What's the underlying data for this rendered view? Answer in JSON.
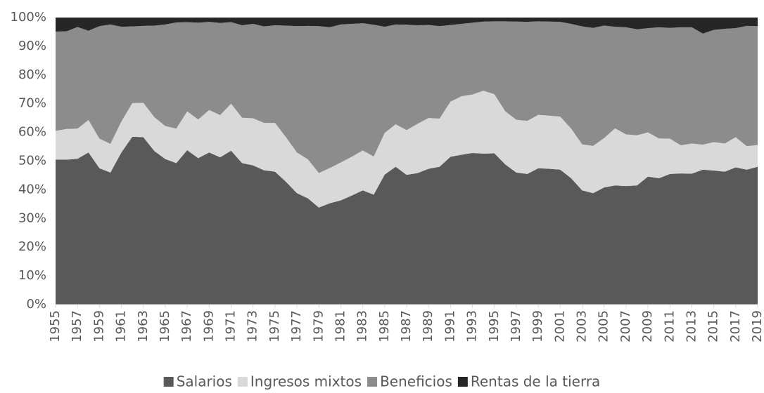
{
  "chart_data": {
    "type": "stacked-area",
    "x": [
      1955,
      1956,
      1957,
      1958,
      1959,
      1960,
      1961,
      1962,
      1963,
      1964,
      1965,
      1966,
      1967,
      1968,
      1969,
      1970,
      1971,
      1972,
      1973,
      1974,
      1975,
      1976,
      1977,
      1978,
      1979,
      1980,
      1981,
      1982,
      1983,
      1984,
      1985,
      1986,
      1987,
      1988,
      1989,
      1990,
      1991,
      1992,
      1993,
      1994,
      1995,
      1996,
      1997,
      1998,
      1999,
      2000,
      2001,
      2002,
      2003,
      2004,
      2005,
      2006,
      2007,
      2008,
      2009,
      2010,
      2011,
      2012,
      2013,
      2014,
      2015,
      2016,
      2017,
      2018,
      2019
    ],
    "xlim": [
      1955,
      2019
    ],
    "xticks": [
      1955,
      1957,
      1959,
      1961,
      1963,
      1965,
      1967,
      1969,
      1971,
      1973,
      1975,
      1977,
      1979,
      1981,
      1983,
      1985,
      1987,
      1989,
      1991,
      1993,
      1995,
      1997,
      1999,
      2001,
      2003,
      2005,
      2007,
      2009,
      2011,
      2013,
      2015,
      2017,
      2019
    ],
    "ylim": [
      0,
      100
    ],
    "yticks": [
      {
        "value": 0,
        "label": "0%"
      },
      {
        "value": 10,
        "label": "10%"
      },
      {
        "value": 20,
        "label": "20%"
      },
      {
        "value": 30,
        "label": "30%"
      },
      {
        "value": 40,
        "label": "40%"
      },
      {
        "value": 50,
        "label": "50%"
      },
      {
        "value": 60,
        "label": "60%"
      },
      {
        "value": 70,
        "label": "70%"
      },
      {
        "value": 80,
        "label": "80%"
      },
      {
        "value": 90,
        "label": "90%"
      },
      {
        "value": 100,
        "label": "100%"
      }
    ],
    "legend": "bottom",
    "series": [
      {
        "name": "Salarios",
        "color": "#595959",
        "values": [
          50.5,
          50.5,
          50.8,
          53.0,
          47.5,
          46.0,
          53.0,
          58.5,
          58.3,
          53.5,
          50.7,
          49.3,
          53.8,
          51.0,
          53.0,
          51.3,
          53.6,
          49.3,
          48.5,
          46.8,
          46.3,
          42.8,
          38.8,
          37.0,
          33.8,
          35.3,
          36.3,
          38.0,
          39.8,
          38.3,
          45.3,
          48.0,
          45.2,
          45.8,
          47.3,
          48.0,
          51.5,
          52.2,
          52.8,
          52.6,
          52.7,
          48.8,
          46.0,
          45.5,
          47.5,
          47.3,
          47.0,
          44.0,
          39.8,
          38.8,
          40.8,
          41.5,
          41.3,
          41.5,
          44.6,
          44.0,
          45.5,
          45.7,
          45.6,
          47.0,
          46.7,
          46.3,
          47.8,
          47.0,
          48.0
        ]
      },
      {
        "name": "Ingresos mixtos",
        "color": "#d9d9d9",
        "values": [
          10.0,
          10.7,
          10.5,
          11.3,
          10.3,
          10.0,
          10.8,
          11.7,
          12.0,
          11.8,
          11.5,
          12.0,
          13.5,
          13.5,
          14.8,
          14.7,
          16.4,
          15.8,
          16.4,
          16.5,
          17.0,
          15.5,
          14.2,
          13.6,
          12.0,
          12.3,
          13.2,
          13.5,
          13.9,
          13.3,
          14.5,
          14.8,
          15.6,
          17.2,
          17.7,
          16.8,
          19.2,
          20.4,
          20.4,
          21.9,
          20.6,
          18.5,
          18.4,
          18.5,
          18.6,
          18.5,
          18.5,
          17.3,
          16.0,
          16.5,
          17.2,
          19.9,
          18.0,
          17.5,
          15.4,
          13.9,
          12.3,
          9.8,
          10.5,
          8.7,
          9.9,
          9.8,
          10.5,
          8.2,
          7.6
        ]
      },
      {
        "name": "Beneficios",
        "color": "#8c8c8c",
        "values": [
          34.6,
          34.0,
          35.4,
          31.1,
          39.2,
          41.6,
          33.0,
          26.7,
          26.8,
          31.9,
          35.4,
          37.0,
          31.1,
          33.7,
          30.7,
          32.1,
          28.4,
          32.2,
          32.9,
          33.6,
          34.0,
          38.9,
          44.0,
          46.5,
          51.2,
          49.0,
          48.1,
          46.3,
          44.3,
          45.9,
          37.0,
          34.8,
          36.7,
          34.3,
          32.4,
          32.2,
          26.7,
          25.2,
          25.0,
          24.1,
          25.4,
          31.4,
          34.2,
          34.5,
          32.6,
          32.8,
          33.0,
          36.5,
          41.1,
          41.1,
          39.2,
          35.4,
          37.3,
          36.9,
          36.3,
          38.7,
          38.6,
          41.1,
          40.5,
          38.7,
          39.1,
          40.0,
          38.0,
          41.9,
          41.4
        ]
      },
      {
        "name": "Rentas de la tierra",
        "color": "#262626",
        "values": [
          4.9,
          4.8,
          3.3,
          4.6,
          3.0,
          2.4,
          3.2,
          3.1,
          2.9,
          2.8,
          2.4,
          1.7,
          1.6,
          1.8,
          1.5,
          1.9,
          1.6,
          2.7,
          2.2,
          3.1,
          2.7,
          2.8,
          3.0,
          2.9,
          3.0,
          3.4,
          2.4,
          2.2,
          2.0,
          2.5,
          3.2,
          2.4,
          2.5,
          2.7,
          2.6,
          3.0,
          2.6,
          2.2,
          1.8,
          1.4,
          1.3,
          1.3,
          1.4,
          1.5,
          1.3,
          1.4,
          1.5,
          2.2,
          3.1,
          3.6,
          2.8,
          3.2,
          3.4,
          4.1,
          3.7,
          3.4,
          3.6,
          3.4,
          3.4,
          5.6,
          4.3,
          3.9,
          3.7,
          2.9,
          3.0
        ]
      }
    ]
  }
}
